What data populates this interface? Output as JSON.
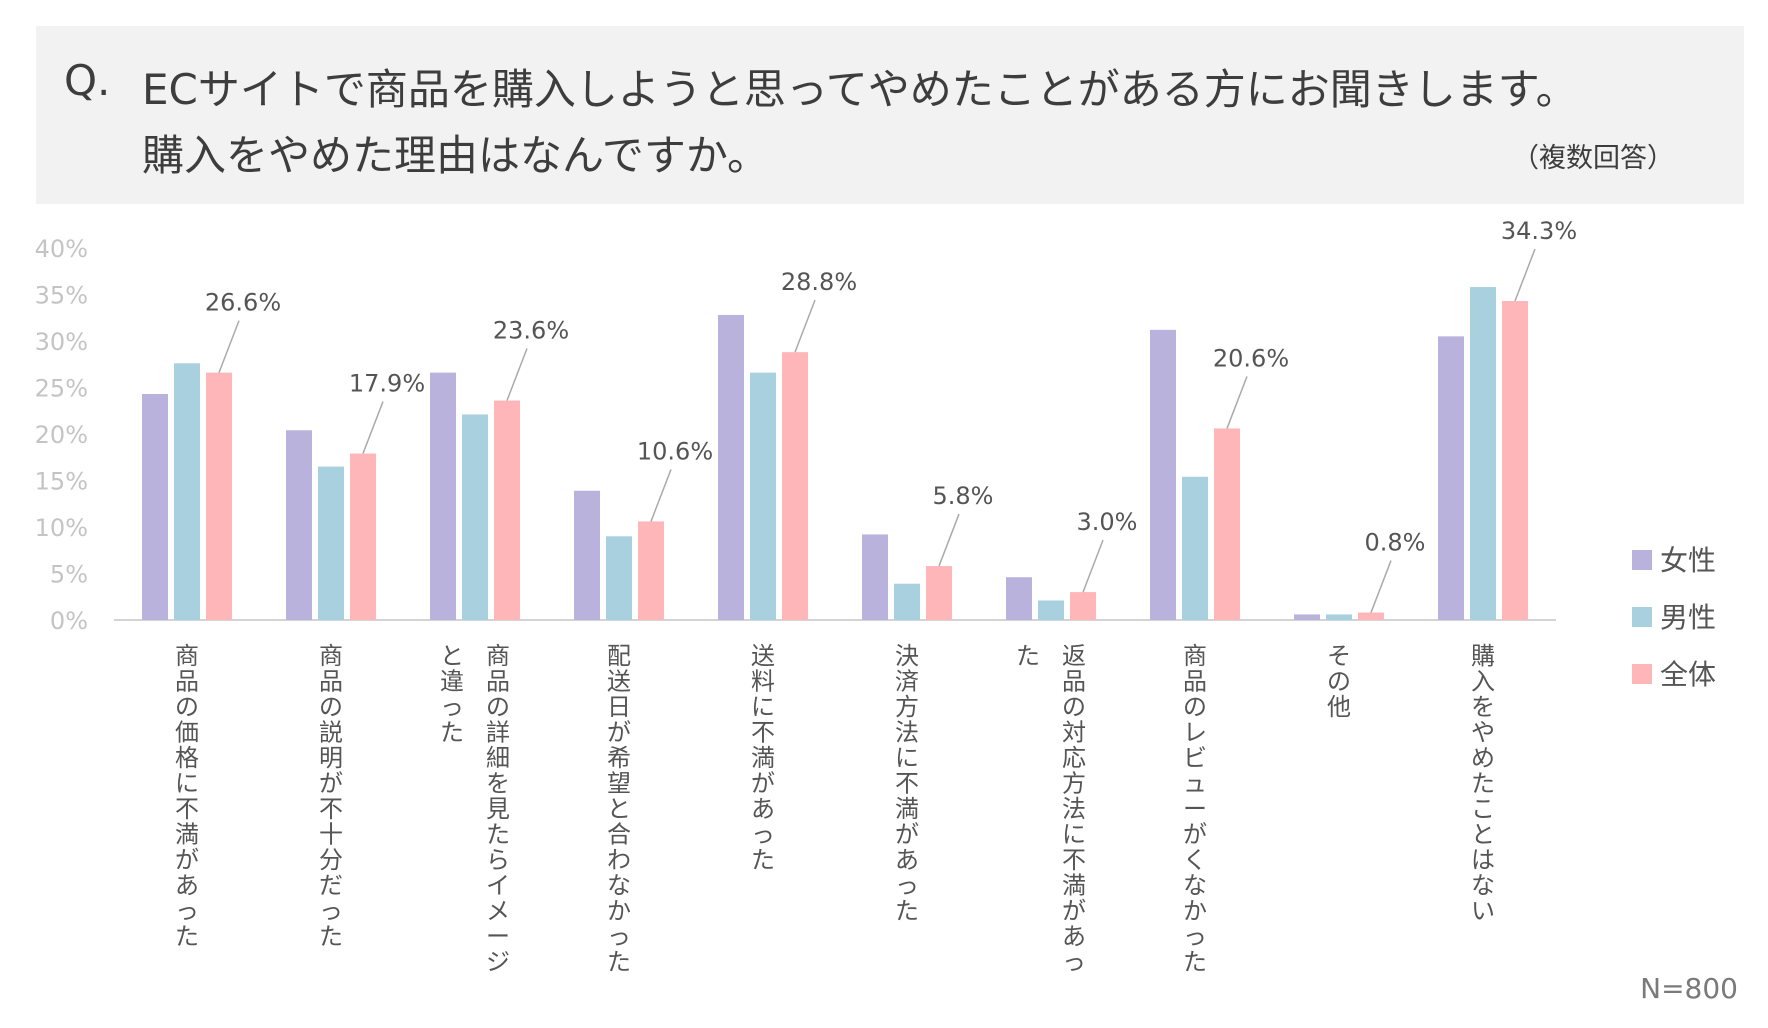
{
  "question": {
    "prefix": "Q.",
    "line1": "ECサイトで商品を購入しようと思ってやめたことがある方にお聞きします。",
    "line2": "購入をやめた理由はなんですか。",
    "note": "（複数回答）"
  },
  "sample_size": "N=800",
  "colors": {
    "女性": "#b9b2dc",
    "男性": "#a8d0de",
    "全体": "#ffb6b9"
  },
  "chart_data": {
    "type": "bar",
    "categories": [
      "商品の価格に不満があった",
      "商品の説明が不十分だった",
      "商品の詳細を見たらイメージと違った",
      "配送日が希望と合わなかった",
      "送料に不満があった",
      "決済方法に不満があった",
      "返品の対応方法に不満があった",
      "商品のレビューがくなかった",
      "その他",
      "購入をやめたことはない"
    ],
    "series": [
      {
        "name": "女性",
        "color": "#b9b2dc",
        "values": [
          24.3,
          20.4,
          26.6,
          13.9,
          32.8,
          9.2,
          4.6,
          31.2,
          0.6,
          30.5
        ]
      },
      {
        "name": "男性",
        "color": "#a8d0de",
        "values": [
          27.6,
          16.5,
          22.1,
          9.0,
          26.6,
          3.9,
          2.1,
          15.4,
          0.6,
          35.8
        ]
      },
      {
        "name": "全体",
        "color": "#ffb6b9",
        "values": [
          26.6,
          17.9,
          23.6,
          10.6,
          28.8,
          5.8,
          3.0,
          20.6,
          0.8,
          34.3
        ]
      }
    ],
    "data_labels": [
      "26.6%",
      "17.9%",
      "23.6%",
      "10.6%",
      "28.8%",
      "5.8%",
      "3.0%",
      "20.6%",
      "0.8%",
      "34.3%"
    ],
    "yticks": [
      "0%",
      "5%",
      "10%",
      "15%",
      "20%",
      "25%",
      "30%",
      "35%",
      "40%"
    ],
    "ylim": [
      0,
      40
    ],
    "grid": false,
    "legend_position": "right"
  }
}
